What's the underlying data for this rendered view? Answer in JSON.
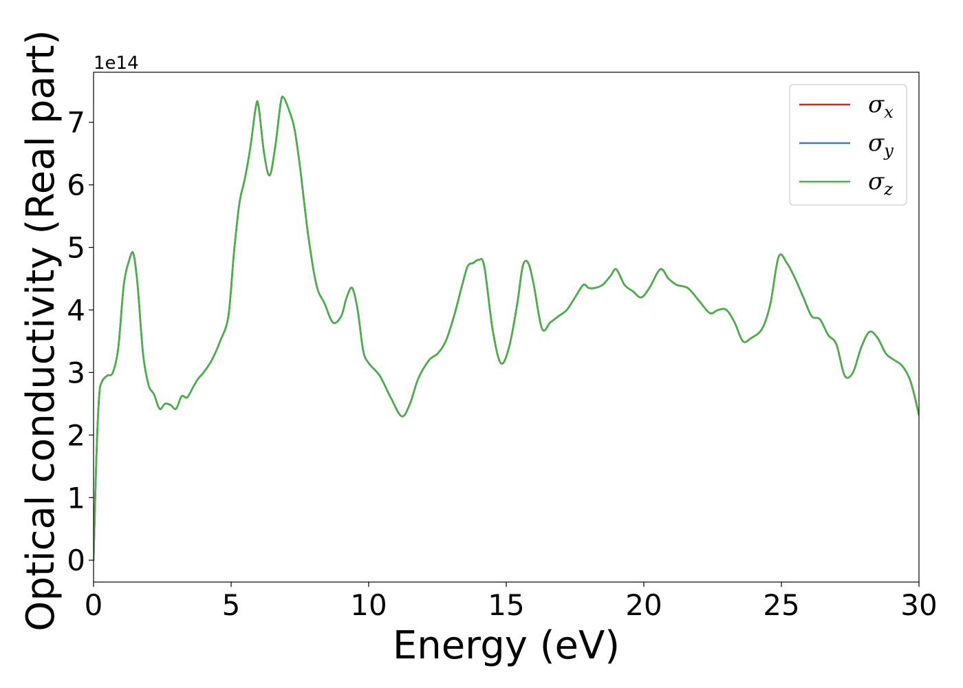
{
  "chart_data": {
    "type": "line",
    "title": "",
    "xlabel": "Energy (eV)",
    "ylabel": "Optical conductivity (Real part)",
    "y_offset_label": "1e14",
    "xlim": [
      0,
      30
    ],
    "ylim": [
      -0.35,
      7.8
    ],
    "xticks": [
      0,
      5,
      10,
      15,
      20,
      25,
      30
    ],
    "yticks": [
      0,
      1,
      2,
      3,
      4,
      5,
      6,
      7
    ],
    "grid": false,
    "legend_position": "top-right",
    "series": [
      {
        "name": "σ_x",
        "legend_symbol": "σ",
        "legend_sub": "x",
        "color": "#d62728",
        "x": [
          0,
          0.1,
          0.2,
          0.3,
          0.5,
          0.7,
          0.9,
          1.1,
          1.3,
          1.45,
          1.6,
          1.8,
          2.0,
          2.2,
          2.4,
          2.6,
          2.8,
          3.0,
          3.2,
          3.4,
          3.6,
          3.8,
          4.0,
          4.3,
          4.6,
          4.9,
          5.1,
          5.3,
          5.5,
          5.7,
          5.9,
          6.0,
          6.2,
          6.4,
          6.6,
          6.8,
          6.9,
          7.1,
          7.3,
          7.5,
          7.8,
          8.1,
          8.4,
          8.7,
          9.0,
          9.2,
          9.4,
          9.6,
          9.8,
          10.0,
          10.4,
          10.8,
          11.2,
          11.5,
          11.8,
          12.2,
          12.5,
          12.8,
          13.1,
          13.4,
          13.6,
          13.8,
          14.0,
          14.2,
          14.5,
          14.8,
          15.1,
          15.4,
          15.6,
          15.8,
          16.0,
          16.3,
          16.6,
          16.9,
          17.2,
          17.5,
          17.8,
          18.0,
          18.2,
          18.5,
          18.8,
          19.0,
          19.3,
          19.6,
          19.9,
          20.2,
          20.6,
          20.9,
          21.2,
          21.6,
          22.0,
          22.4,
          22.7,
          23.0,
          23.3,
          23.6,
          23.9,
          24.3,
          24.6,
          24.9,
          25.2,
          25.5,
          25.8,
          26.1,
          26.4,
          26.7,
          27.0,
          27.3,
          27.6,
          27.9,
          28.2,
          28.5,
          28.8,
          29.1,
          29.4,
          29.7,
          30.0
        ],
        "y": [
          0,
          1.6,
          2.6,
          2.85,
          2.95,
          3.0,
          3.4,
          4.4,
          4.8,
          4.9,
          4.4,
          3.3,
          2.8,
          2.65,
          2.42,
          2.5,
          2.48,
          2.42,
          2.62,
          2.6,
          2.75,
          2.9,
          3.0,
          3.2,
          3.5,
          3.9,
          4.9,
          5.7,
          6.1,
          6.6,
          7.25,
          7.25,
          6.5,
          6.15,
          6.6,
          7.3,
          7.4,
          7.2,
          6.9,
          6.3,
          5.2,
          4.4,
          4.1,
          3.8,
          3.9,
          4.2,
          4.35,
          4.0,
          3.35,
          3.15,
          2.95,
          2.6,
          2.3,
          2.5,
          2.9,
          3.2,
          3.3,
          3.5,
          3.9,
          4.4,
          4.7,
          4.75,
          4.8,
          4.7,
          3.7,
          3.15,
          3.4,
          4.1,
          4.7,
          4.75,
          4.4,
          3.7,
          3.8,
          3.9,
          4.0,
          4.2,
          4.4,
          4.35,
          4.35,
          4.4,
          4.55,
          4.65,
          4.4,
          4.3,
          4.2,
          4.35,
          4.65,
          4.5,
          4.4,
          4.35,
          4.15,
          3.95,
          4.0,
          4.0,
          3.8,
          3.5,
          3.55,
          3.7,
          4.1,
          4.85,
          4.75,
          4.5,
          4.2,
          3.9,
          3.85,
          3.6,
          3.45,
          2.95,
          3.0,
          3.4,
          3.65,
          3.55,
          3.3,
          3.2,
          3.1,
          2.85,
          2.32
        ]
      },
      {
        "name": "σ_y",
        "legend_symbol": "σ",
        "legend_sub": "y",
        "color": "#377eb8",
        "x": [
          0,
          0.1,
          0.2,
          0.3,
          0.5,
          0.7,
          0.9,
          1.1,
          1.3,
          1.45,
          1.6,
          1.8,
          2.0,
          2.2,
          2.4,
          2.6,
          2.8,
          3.0,
          3.2,
          3.4,
          3.6,
          3.8,
          4.0,
          4.3,
          4.6,
          4.9,
          5.1,
          5.3,
          5.5,
          5.7,
          5.9,
          6.0,
          6.2,
          6.4,
          6.6,
          6.8,
          6.9,
          7.1,
          7.3,
          7.5,
          7.8,
          8.1,
          8.4,
          8.7,
          9.0,
          9.2,
          9.4,
          9.6,
          9.8,
          10.0,
          10.4,
          10.8,
          11.2,
          11.5,
          11.8,
          12.2,
          12.5,
          12.8,
          13.1,
          13.4,
          13.6,
          13.8,
          14.0,
          14.2,
          14.5,
          14.8,
          15.1,
          15.4,
          15.6,
          15.8,
          16.0,
          16.3,
          16.6,
          16.9,
          17.2,
          17.5,
          17.8,
          18.0,
          18.2,
          18.5,
          18.8,
          19.0,
          19.3,
          19.6,
          19.9,
          20.2,
          20.6,
          20.9,
          21.2,
          21.6,
          22.0,
          22.4,
          22.7,
          23.0,
          23.3,
          23.6,
          23.9,
          24.3,
          24.6,
          24.9,
          25.2,
          25.5,
          25.8,
          26.1,
          26.4,
          26.7,
          27.0,
          27.3,
          27.6,
          27.9,
          28.2,
          28.5,
          28.8,
          29.1,
          29.4,
          29.7,
          30.0
        ],
        "y": [
          0,
          1.6,
          2.6,
          2.85,
          2.95,
          3.0,
          3.4,
          4.4,
          4.8,
          4.9,
          4.4,
          3.3,
          2.8,
          2.65,
          2.42,
          2.5,
          2.48,
          2.42,
          2.62,
          2.6,
          2.75,
          2.9,
          3.0,
          3.2,
          3.5,
          3.9,
          4.9,
          5.7,
          6.1,
          6.6,
          7.25,
          7.25,
          6.5,
          6.15,
          6.6,
          7.3,
          7.4,
          7.2,
          6.9,
          6.3,
          5.2,
          4.4,
          4.1,
          3.8,
          3.9,
          4.2,
          4.35,
          4.0,
          3.35,
          3.15,
          2.95,
          2.6,
          2.3,
          2.5,
          2.9,
          3.2,
          3.3,
          3.5,
          3.9,
          4.4,
          4.7,
          4.75,
          4.8,
          4.7,
          3.7,
          3.15,
          3.4,
          4.1,
          4.7,
          4.75,
          4.4,
          3.7,
          3.8,
          3.9,
          4.0,
          4.2,
          4.4,
          4.35,
          4.35,
          4.4,
          4.55,
          4.65,
          4.4,
          4.3,
          4.2,
          4.35,
          4.65,
          4.5,
          4.4,
          4.35,
          4.15,
          3.95,
          4.0,
          4.0,
          3.8,
          3.5,
          3.55,
          3.7,
          4.1,
          4.85,
          4.75,
          4.5,
          4.2,
          3.9,
          3.85,
          3.6,
          3.45,
          2.95,
          3.0,
          3.4,
          3.65,
          3.55,
          3.3,
          3.2,
          3.1,
          2.85,
          2.32
        ]
      },
      {
        "name": "σ_z",
        "legend_symbol": "σ",
        "legend_sub": "z",
        "color": "#4daf4a",
        "x": [
          0,
          0.1,
          0.2,
          0.3,
          0.5,
          0.7,
          0.9,
          1.1,
          1.3,
          1.45,
          1.6,
          1.8,
          2.0,
          2.2,
          2.4,
          2.6,
          2.8,
          3.0,
          3.2,
          3.4,
          3.6,
          3.8,
          4.0,
          4.3,
          4.6,
          4.9,
          5.1,
          5.3,
          5.5,
          5.7,
          5.9,
          6.0,
          6.2,
          6.4,
          6.6,
          6.8,
          6.9,
          7.1,
          7.3,
          7.5,
          7.8,
          8.1,
          8.4,
          8.7,
          9.0,
          9.2,
          9.4,
          9.6,
          9.8,
          10.0,
          10.4,
          10.8,
          11.2,
          11.5,
          11.8,
          12.2,
          12.5,
          12.8,
          13.1,
          13.4,
          13.6,
          13.8,
          14.0,
          14.2,
          14.5,
          14.8,
          15.1,
          15.4,
          15.6,
          15.8,
          16.0,
          16.3,
          16.6,
          16.9,
          17.2,
          17.5,
          17.8,
          18.0,
          18.2,
          18.5,
          18.8,
          19.0,
          19.3,
          19.6,
          19.9,
          20.2,
          20.6,
          20.9,
          21.2,
          21.6,
          22.0,
          22.4,
          22.7,
          23.0,
          23.3,
          23.6,
          23.9,
          24.3,
          24.6,
          24.9,
          25.2,
          25.5,
          25.8,
          26.1,
          26.4,
          26.7,
          27.0,
          27.3,
          27.6,
          27.9,
          28.2,
          28.5,
          28.8,
          29.1,
          29.4,
          29.7,
          30.0
        ],
        "y": [
          0,
          1.6,
          2.6,
          2.85,
          2.95,
          3.0,
          3.4,
          4.4,
          4.8,
          4.9,
          4.4,
          3.3,
          2.8,
          2.65,
          2.42,
          2.5,
          2.48,
          2.42,
          2.62,
          2.6,
          2.75,
          2.9,
          3.0,
          3.2,
          3.5,
          3.9,
          4.9,
          5.7,
          6.1,
          6.6,
          7.25,
          7.25,
          6.5,
          6.15,
          6.6,
          7.3,
          7.4,
          7.2,
          6.9,
          6.3,
          5.2,
          4.4,
          4.1,
          3.8,
          3.9,
          4.2,
          4.35,
          4.0,
          3.35,
          3.15,
          2.95,
          2.6,
          2.3,
          2.5,
          2.9,
          3.2,
          3.3,
          3.5,
          3.9,
          4.4,
          4.7,
          4.75,
          4.8,
          4.7,
          3.7,
          3.15,
          3.4,
          4.1,
          4.7,
          4.75,
          4.4,
          3.7,
          3.8,
          3.9,
          4.0,
          4.2,
          4.4,
          4.35,
          4.35,
          4.4,
          4.55,
          4.65,
          4.4,
          4.3,
          4.2,
          4.35,
          4.65,
          4.5,
          4.4,
          4.35,
          4.15,
          3.95,
          4.0,
          4.0,
          3.8,
          3.5,
          3.55,
          3.7,
          4.1,
          4.85,
          4.75,
          4.5,
          4.2,
          3.9,
          3.85,
          3.6,
          3.45,
          2.95,
          3.0,
          3.4,
          3.65,
          3.55,
          3.3,
          3.2,
          3.1,
          2.85,
          2.32
        ]
      }
    ]
  }
}
